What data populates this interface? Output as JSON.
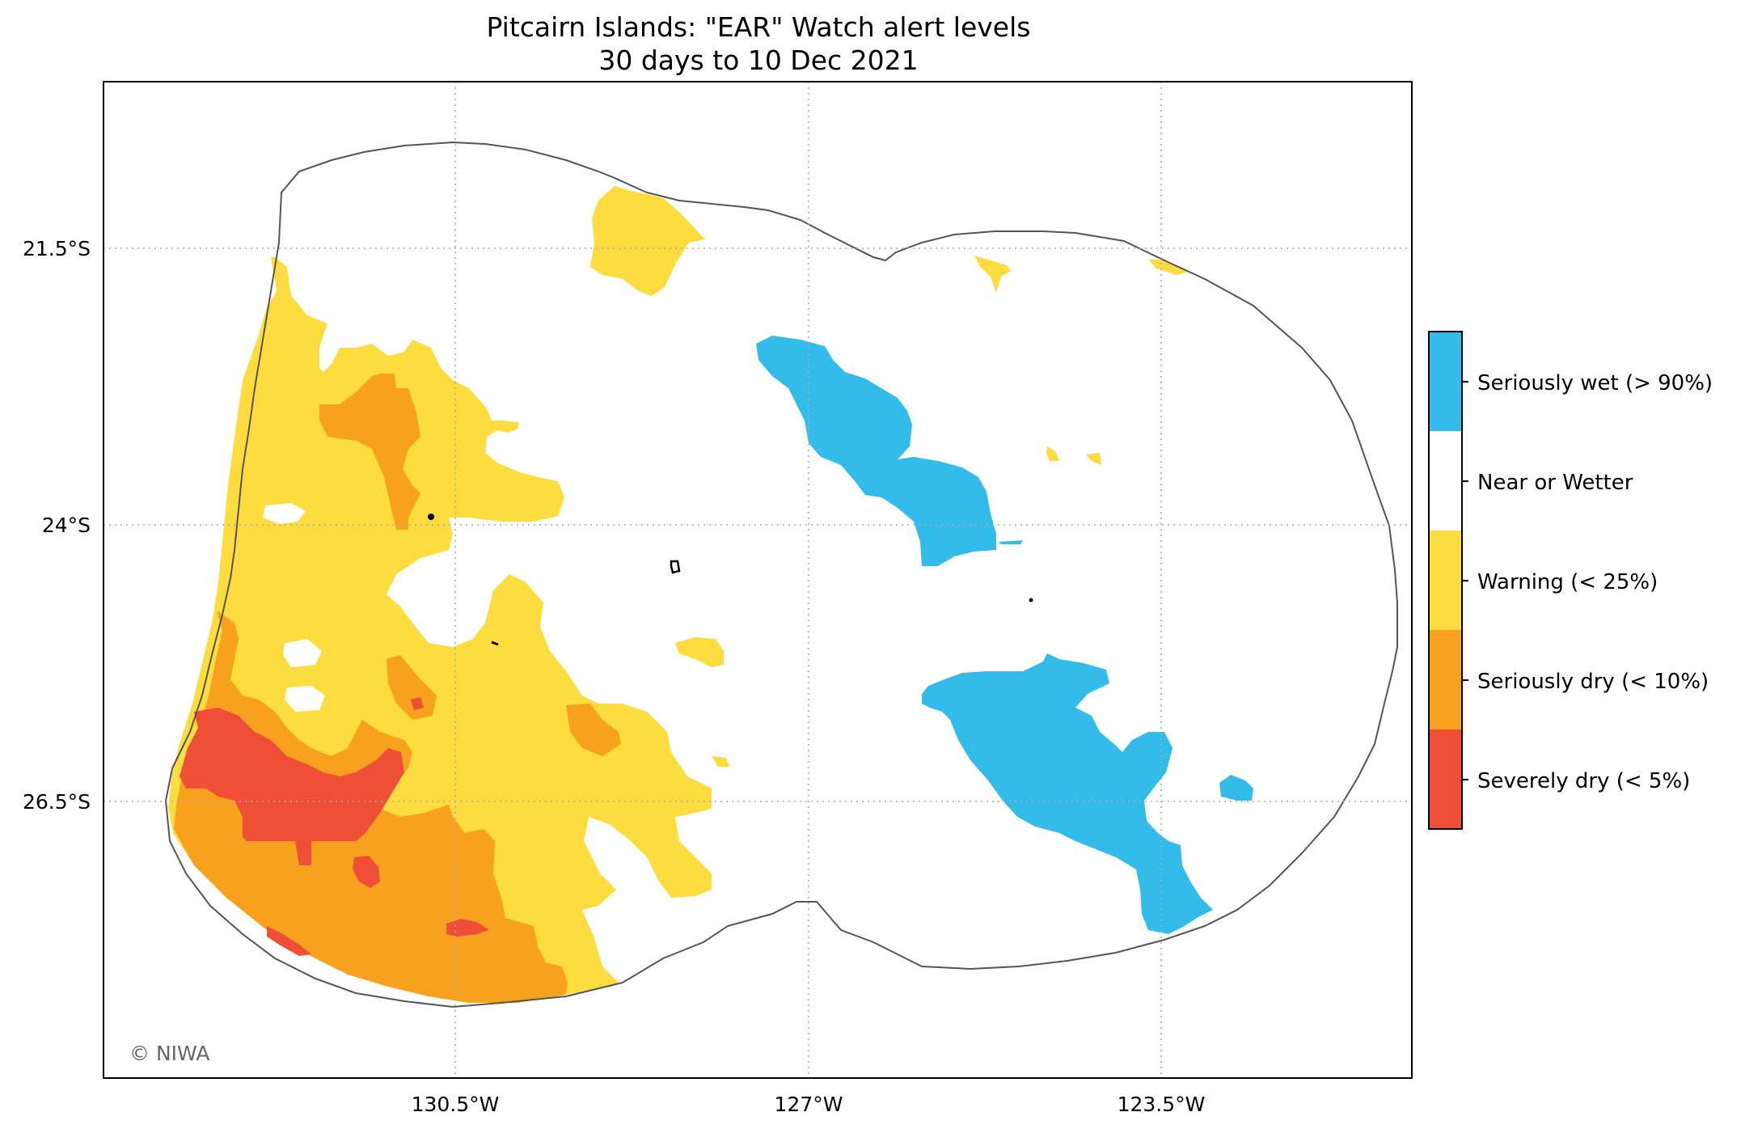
{
  "title": "Pitcairn Islands: \"EAR\" Watch alert levels",
  "subtitle": "30 days to 10 Dec 2021",
  "copyright": "© NIWA",
  "axes": {
    "longitude_ticks": [
      "130.5°W",
      "127°W",
      "123.5°W"
    ],
    "latitude_ticks": [
      "21.5°S",
      "24°S",
      "26.5°S"
    ]
  },
  "legend": [
    {
      "label": "Seriously wet (> 90%)",
      "color": "#33bbea"
    },
    {
      "label": "Near or Wetter",
      "color": "#ffffff"
    },
    {
      "label": "Warning (< 25%)",
      "color": "#fddc3f"
    },
    {
      "label": "Seriously dry (< 10%)",
      "color": "#f7a11f"
    },
    {
      "label": "Severely dry (< 5%)",
      "color": "#ef4f37"
    }
  ],
  "colors": {
    "wet": "#33bbea",
    "warning": "#fddc3f",
    "dry": "#f7a11f",
    "severe": "#ef4f37",
    "boundary": "#555555",
    "grid": "#aaaaaa"
  }
}
